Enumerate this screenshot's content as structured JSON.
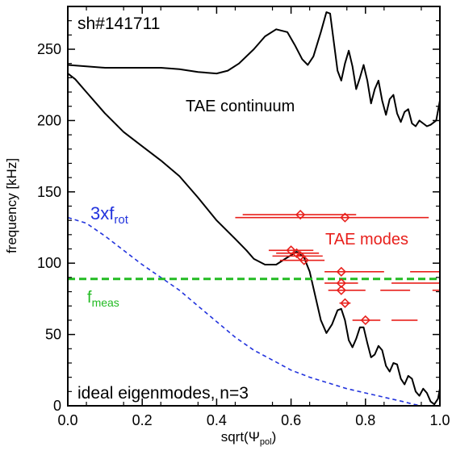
{
  "chart_data": {
    "type": "line",
    "xlabel": "sqrt(Ψ",
    "xlabel_sub": "pol",
    "xlabel_close": ")",
    "ylabel": "frequency [kHz]",
    "xlim": [
      0.0,
      1.0
    ],
    "ylim": [
      0,
      280
    ],
    "xticks": [
      "0.0",
      "0.2",
      "0.4",
      "0.6",
      "0.8",
      "1.0"
    ],
    "yticks": [
      "0",
      "50",
      "100",
      "150",
      "200",
      "250"
    ],
    "annotations": {
      "shot": "sh#141711",
      "continuum": "TAE continuum",
      "modes": "TAE modes",
      "rot_main": "3xf",
      "rot_sub": "rot",
      "meas_main": "f",
      "meas_sub": "meas",
      "eigen": "ideal eigenmodes, n=3"
    },
    "colors": {
      "axes": "#000000",
      "continuum": "#000000",
      "modes": "#e8201c",
      "rotation": "#2233dd",
      "measured": "#22bb22"
    },
    "series": [
      {
        "role": "continuum_upper",
        "style": "solid",
        "points": [
          [
            0.0,
            239
          ],
          [
            0.05,
            238
          ],
          [
            0.1,
            237
          ],
          [
            0.15,
            237
          ],
          [
            0.2,
            237
          ],
          [
            0.25,
            237
          ],
          [
            0.3,
            236
          ],
          [
            0.35,
            234
          ],
          [
            0.4,
            233
          ],
          [
            0.43,
            235
          ],
          [
            0.46,
            240
          ],
          [
            0.5,
            250
          ],
          [
            0.53,
            259
          ],
          [
            0.56,
            264
          ],
          [
            0.59,
            262
          ],
          [
            0.61,
            253
          ],
          [
            0.63,
            243
          ],
          [
            0.645,
            239
          ],
          [
            0.66,
            245
          ],
          [
            0.68,
            262
          ],
          [
            0.695,
            276
          ],
          [
            0.705,
            275
          ],
          [
            0.715,
            255
          ],
          [
            0.725,
            235
          ],
          [
            0.735,
            228
          ],
          [
            0.745,
            240
          ],
          [
            0.755,
            249
          ],
          [
            0.765,
            238
          ],
          [
            0.775,
            222
          ],
          [
            0.785,
            230
          ],
          [
            0.795,
            239
          ],
          [
            0.805,
            228
          ],
          [
            0.815,
            212
          ],
          [
            0.825,
            222
          ],
          [
            0.835,
            228
          ],
          [
            0.845,
            214
          ],
          [
            0.855,
            204
          ],
          [
            0.865,
            215
          ],
          [
            0.875,
            218
          ],
          [
            0.885,
            205
          ],
          [
            0.895,
            199
          ],
          [
            0.905,
            206
          ],
          [
            0.915,
            208
          ],
          [
            0.925,
            198
          ],
          [
            0.935,
            196
          ],
          [
            0.945,
            200
          ],
          [
            0.955,
            198
          ],
          [
            0.965,
            196
          ],
          [
            0.975,
            197
          ],
          [
            0.99,
            200
          ],
          [
            1.0,
            214
          ]
        ]
      },
      {
        "role": "continuum_lower",
        "style": "solid",
        "points": [
          [
            0.0,
            233
          ],
          [
            0.02,
            229
          ],
          [
            0.05,
            220
          ],
          [
            0.1,
            205
          ],
          [
            0.15,
            192
          ],
          [
            0.2,
            182
          ],
          [
            0.25,
            172
          ],
          [
            0.3,
            161
          ],
          [
            0.35,
            146
          ],
          [
            0.4,
            130
          ],
          [
            0.45,
            117
          ],
          [
            0.48,
            109
          ],
          [
            0.5,
            103
          ],
          [
            0.53,
            99
          ],
          [
            0.56,
            99
          ],
          [
            0.59,
            104
          ],
          [
            0.615,
            108
          ],
          [
            0.635,
            104
          ],
          [
            0.65,
            94
          ],
          [
            0.665,
            77
          ],
          [
            0.68,
            60
          ],
          [
            0.695,
            51
          ],
          [
            0.71,
            57
          ],
          [
            0.725,
            67
          ],
          [
            0.735,
            68
          ],
          [
            0.745,
            60
          ],
          [
            0.755,
            46
          ],
          [
            0.765,
            41
          ],
          [
            0.775,
            47
          ],
          [
            0.785,
            55
          ],
          [
            0.795,
            55
          ],
          [
            0.805,
            44
          ],
          [
            0.815,
            34
          ],
          [
            0.825,
            36
          ],
          [
            0.835,
            42
          ],
          [
            0.845,
            39
          ],
          [
            0.855,
            28
          ],
          [
            0.865,
            24
          ],
          [
            0.875,
            30
          ],
          [
            0.885,
            29
          ],
          [
            0.895,
            19
          ],
          [
            0.905,
            15
          ],
          [
            0.915,
            21
          ],
          [
            0.925,
            19
          ],
          [
            0.935,
            10
          ],
          [
            0.945,
            7
          ],
          [
            0.955,
            12
          ],
          [
            0.965,
            9
          ],
          [
            0.975,
            3
          ],
          [
            0.985,
            1
          ],
          [
            0.995,
            5
          ],
          [
            1.0,
            12
          ]
        ]
      },
      {
        "role": "rotation_3xfrot",
        "style": "dashed",
        "points": [
          [
            0.0,
            132
          ],
          [
            0.05,
            128
          ],
          [
            0.1,
            119
          ],
          [
            0.15,
            109
          ],
          [
            0.2,
            99
          ],
          [
            0.25,
            90
          ],
          [
            0.3,
            81
          ],
          [
            0.35,
            70
          ],
          [
            0.4,
            59
          ],
          [
            0.45,
            48
          ],
          [
            0.5,
            39
          ],
          [
            0.55,
            32
          ],
          [
            0.6,
            25
          ],
          [
            0.65,
            20
          ],
          [
            0.7,
            16
          ],
          [
            0.75,
            12
          ],
          [
            0.8,
            9
          ],
          [
            0.85,
            6
          ],
          [
            0.9,
            3
          ],
          [
            0.93,
            1
          ],
          [
            0.95,
            0
          ]
        ]
      },
      {
        "role": "measured_fmeas",
        "style": "dashed",
        "points": [
          [
            0.0,
            89
          ],
          [
            1.0,
            89
          ]
        ]
      }
    ],
    "tae_modes": [
      {
        "x": 0.625,
        "y": 134,
        "xmin": 0.47,
        "xmax": 0.775
      },
      {
        "x": 0.745,
        "y": 132,
        "xmin": 0.45,
        "xmax": 0.97
      },
      {
        "x": 0.6,
        "y": 109,
        "xmin": 0.54,
        "xmax": 0.66
      },
      {
        "x": 0.615,
        "y": 107,
        "xmin": 0.56,
        "xmax": 0.675
      },
      {
        "x": 0.625,
        "y": 105,
        "xmin": 0.55,
        "xmax": 0.685
      },
      {
        "x": 0.635,
        "y": 102,
        "xmin": 0.57,
        "xmax": 0.69
      },
      {
        "x": 0.735,
        "y": 94,
        "xmin": 0.69,
        "xmax": 0.85
      },
      {
        "x": 0.735,
        "y": 86,
        "xmin": 0.69,
        "xmax": 0.78
      },
      {
        "x": 0.735,
        "y": 81,
        "xmin": 0.7,
        "xmax": 0.8
      },
      {
        "x": 0.745,
        "y": 72,
        "xmin": 0.73,
        "xmax": 0.76
      },
      {
        "x": 0.8,
        "y": 60,
        "xmin": 0.765,
        "xmax": 0.84
      }
    ],
    "tae_segments": [
      {
        "y": 94,
        "xmin": 0.92,
        "xmax": 1.0
      },
      {
        "y": 86,
        "xmin": 0.87,
        "xmax": 1.0
      },
      {
        "y": 81,
        "xmin": 0.84,
        "xmax": 0.92
      },
      {
        "y": 81,
        "xmin": 0.98,
        "xmax": 1.0
      },
      {
        "y": 60,
        "xmin": 0.87,
        "xmax": 0.94
      }
    ]
  }
}
